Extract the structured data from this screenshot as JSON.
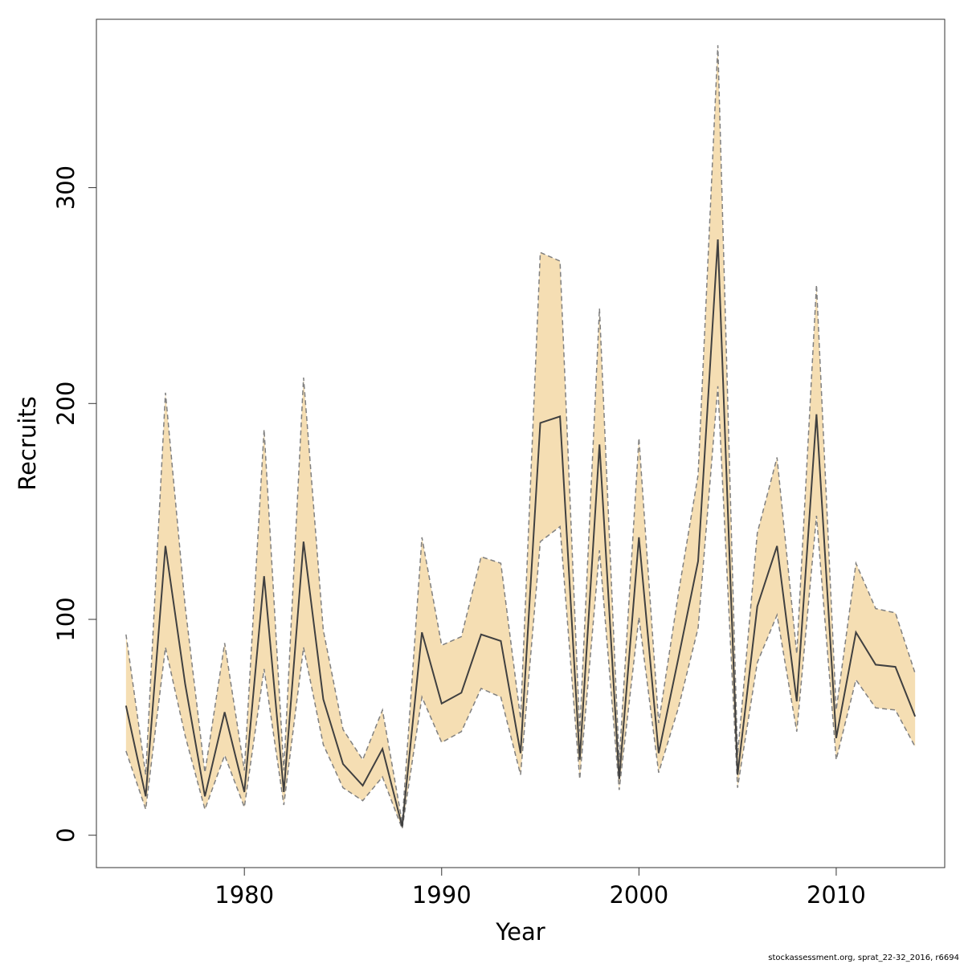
{
  "chart_data": {
    "type": "line",
    "xlabel": "Year",
    "ylabel": "Recruits",
    "xlim": [
      1972.5,
      2015.5
    ],
    "ylim": [
      -15,
      378
    ],
    "x_ticks": [
      1980,
      1990,
      2000,
      2010
    ],
    "y_ticks": [
      0,
      100,
      200,
      300
    ],
    "grid": false,
    "colors": {
      "band": "#f5deb3",
      "bound_line": "#808080",
      "estimate_line": "#404040"
    },
    "x": [
      1974,
      1975,
      1976,
      1977,
      1978,
      1979,
      1980,
      1981,
      1982,
      1983,
      1984,
      1985,
      1986,
      1987,
      1988,
      1989,
      1990,
      1991,
      1992,
      1993,
      1994,
      1995,
      1996,
      1997,
      1998,
      1999,
      2000,
      2001,
      2002,
      2003,
      2004,
      2005,
      2006,
      2007,
      2008,
      2009,
      2010,
      2011,
      2012,
      2013,
      2014
    ],
    "series": [
      {
        "values": [
          60,
          18,
          134,
          70,
          18,
          57,
          20,
          120,
          20,
          136,
          63,
          33,
          23,
          40,
          4,
          94,
          61,
          66,
          93,
          90,
          38,
          191,
          194,
          35,
          181,
          26,
          138,
          38,
          82,
          127,
          276,
          28,
          106,
          134,
          62,
          195,
          45,
          94,
          79,
          78,
          55
        ]
      },
      {
        "values": [
          39,
          12,
          87,
          46,
          12,
          37,
          13,
          77,
          14,
          87,
          42,
          22,
          16,
          27,
          3,
          64,
          43,
          48,
          68,
          64,
          28,
          136,
          143,
          26,
          132,
          21,
          101,
          29,
          59,
          96,
          208,
          22,
          80,
          102,
          48,
          148,
          35,
          72,
          59,
          58,
          41
        ]
      },
      {
        "values": [
          93,
          28,
          205,
          106,
          29,
          89,
          30,
          188,
          30,
          212,
          95,
          49,
          35,
          58,
          6,
          138,
          88,
          92,
          129,
          126,
          54,
          270,
          266,
          48,
          244,
          34,
          184,
          52,
          112,
          167,
          366,
          37,
          140,
          175,
          84,
          255,
          58,
          126,
          105,
          103,
          75
        ]
      }
    ]
  },
  "footer": "stockassessment.org, sprat_22-32_2016, r6694"
}
